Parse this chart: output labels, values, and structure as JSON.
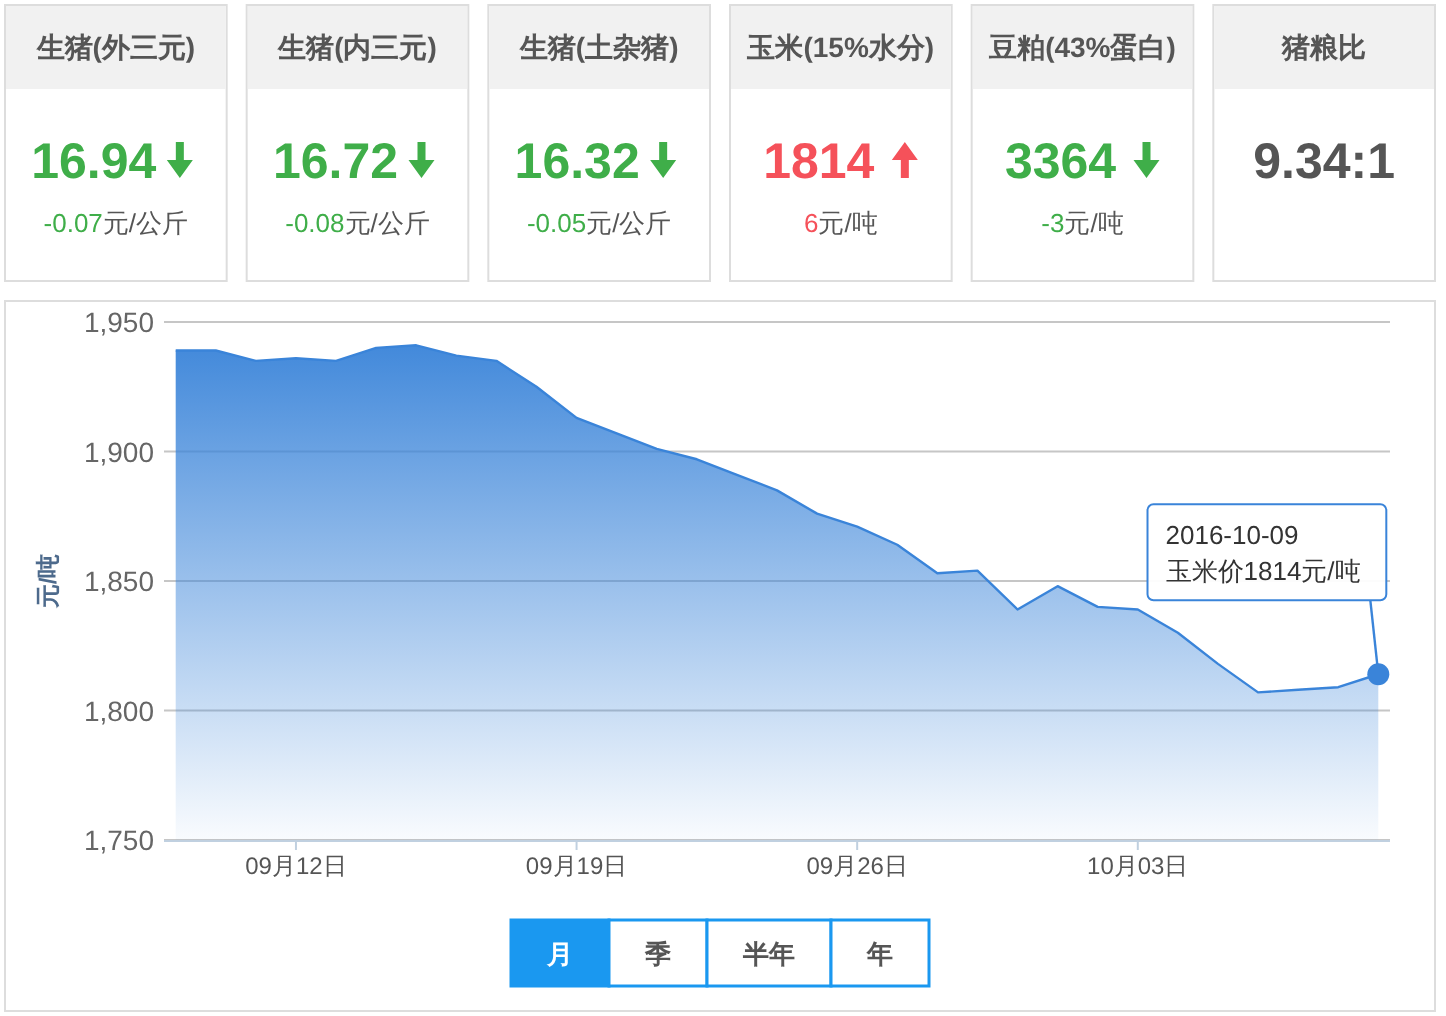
{
  "chart_data": [
    {
      "type": "other",
      "categories": [
        "生猪(外三元)",
        "生猪(内三元)",
        "生猪(土杂猪)",
        "玉米(15%水分)",
        "豆粕(43%蛋白)",
        "猪粮比"
      ],
      "series": [
        {
          "values": [
            16.94,
            16.72,
            16.32,
            1814,
            3364,
            9.34
          ],
          "value_labels": [
            "16.94",
            "16.72",
            "16.32",
            "1814",
            "3364",
            "9.34:1"
          ]
        },
        {
          "values": [
            -0.07,
            -0.08,
            -0.05,
            6,
            -3,
            null
          ],
          "value_labels": [
            "-0.07元/公斤",
            "-0.08元/公斤",
            "-0.05元/公斤",
            "6元/吨",
            "-3元/吨",
            null
          ]
        }
      ]
    },
    {
      "type": "area",
      "ylabel": "元/吨",
      "x": [
        "2016-09-09",
        "2016-09-10",
        "2016-09-11",
        "2016-09-12",
        "2016-09-13",
        "2016-09-14",
        "2016-09-15",
        "2016-09-16",
        "2016-09-17",
        "2016-09-18",
        "2016-09-19",
        "2016-09-20",
        "2016-09-21",
        "2016-09-22",
        "2016-09-23",
        "2016-09-24",
        "2016-09-25",
        "2016-09-26",
        "2016-09-27",
        "2016-09-28",
        "2016-09-29",
        "2016-09-30",
        "2016-10-01",
        "2016-10-02",
        "2016-10-03",
        "2016-10-04",
        "2016-10-05",
        "2016-10-06",
        "2016-10-07",
        "2016-10-08",
        "2016-10-09"
      ],
      "values": [
        1939,
        1939,
        1935,
        1936,
        1935,
        1940,
        1941,
        1937,
        1935,
        1925,
        1913,
        1907,
        1901,
        1897,
        1891,
        1885,
        1876,
        1871,
        1864,
        1853,
        1854,
        1839,
        1848,
        1840,
        1839,
        1830,
        1818,
        1807,
        1808,
        1809,
        1814
      ],
      "color": "#3a84d9",
      "xlim": [
        "2016-09-08T17:00",
        "2016-10-09T07:00"
      ],
      "xticks": [
        {
          "value": "2016-09-12",
          "label": "09月12日"
        },
        {
          "value": "2016-09-19",
          "label": "09月19日"
        },
        {
          "value": "2016-09-26",
          "label": "09月26日"
        },
        {
          "value": "2016-10-03",
          "label": "10月03日"
        }
      ],
      "ylim": [
        1750,
        1950
      ],
      "yticks": [
        {
          "value": 1750,
          "label": "1,750"
        },
        {
          "value": 1800,
          "label": "1,800"
        },
        {
          "value": 1850,
          "label": "1,850"
        },
        {
          "value": 1900,
          "label": "1,900"
        },
        {
          "value": 1950,
          "label": "1,950"
        }
      ],
      "grid": "y",
      "annotations": [
        {
          "text": "2016-10-09\n玉米价1814元/吨",
          "x": "2016-10-09",
          "y": 1814
        },
        "月",
        "季",
        "半年",
        "年"
      ]
    }
  ]
}
